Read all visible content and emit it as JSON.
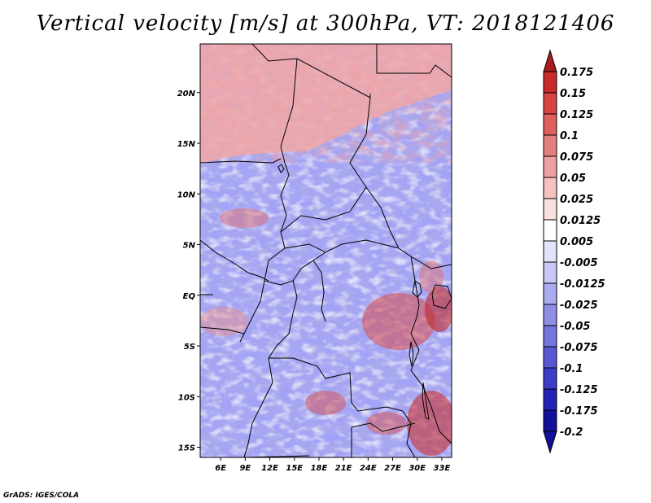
{
  "map": {
    "title": "Vertical velocity [m/s] at 300hPa, VT: 2018121406",
    "credit": "GrADS: IGES/COLA",
    "lat_labels": [
      "20N",
      "15N",
      "10N",
      "5N",
      "EQ",
      "5S",
      "10S",
      "15S"
    ],
    "lon_labels": [
      "6E",
      "9E",
      "12E",
      "15E",
      "18E",
      "21E",
      "24E",
      "27E",
      "30E",
      "33E"
    ],
    "lon_range": [
      3.5,
      34.2
    ],
    "lat_range": [
      -16.0,
      24.8
    ]
  },
  "colorbar": {
    "labels": [
      "0.175",
      "0.15",
      "0.125",
      "0.1",
      "0.075",
      "0.05",
      "0.025",
      "0.0125",
      "0.005",
      "-0.005",
      "-0.0125",
      "-0.025",
      "-0.05",
      "-0.075",
      "-0.1",
      "-0.125",
      "-0.175",
      "-0.2"
    ],
    "colors": [
      "#aa1a1a",
      "#c92a2a",
      "#d94343",
      "#e06060",
      "#e68080",
      "#ee9f9f",
      "#f5c1c1",
      "#fbe0e0",
      "#ffffff",
      "#e3e3fa",
      "#c8c8f4",
      "#aaaaee",
      "#8f8fe6",
      "#7474dd",
      "#5858d3",
      "#3c3cc8",
      "#2222b8",
      "#10109a"
    ]
  }
}
